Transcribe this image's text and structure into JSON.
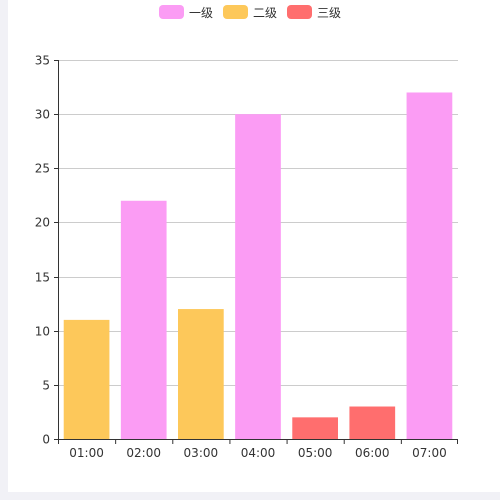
{
  "chart_data": {
    "type": "bar",
    "title": "",
    "xlabel": "",
    "ylabel": "",
    "categories": [
      "01:00",
      "02:00",
      "03:00",
      "04:00",
      "05:00",
      "06:00",
      "07:00"
    ],
    "values": [
      11,
      22,
      12,
      30,
      2,
      3,
      32
    ],
    "bar_levels": [
      "二级",
      "一级",
      "二级",
      "一级",
      "三级",
      "三级",
      "一级"
    ],
    "legend": [
      {
        "name": "一级",
        "color": "#fb9cf4"
      },
      {
        "name": "二级",
        "color": "#fdc85a"
      },
      {
        "name": "三级",
        "color": "#ff6e6e"
      }
    ],
    "ylim": [
      0,
      35
    ],
    "yticks": [
      0,
      5,
      10,
      15,
      20,
      25,
      30,
      35
    ],
    "grid": true,
    "legend_position": "top-center"
  }
}
